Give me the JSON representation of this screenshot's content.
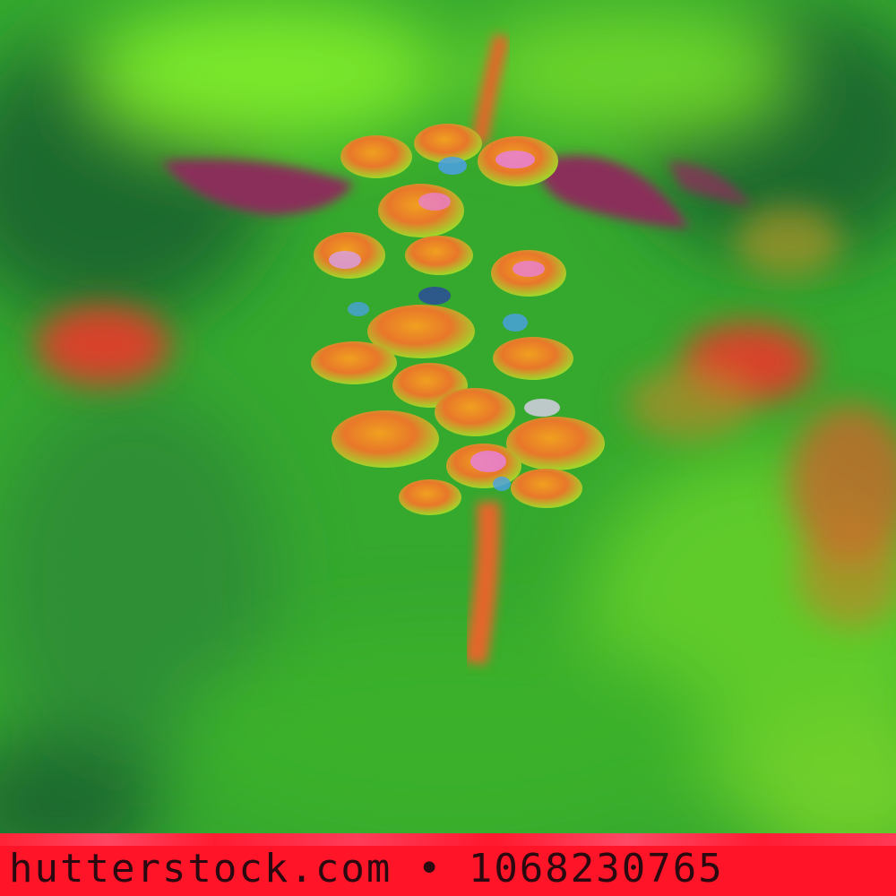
{
  "image": {
    "subject": "berries",
    "colors": {
      "foliage_dark": "#1f6b2e",
      "foliage_mid": "#3fbf2f",
      "foliage_bright": "#7be82a",
      "berry_orange": "#e8772a",
      "berry_red": "#d8432a",
      "leaf_purple": "#8a2e5a",
      "highlight_blue": "#4aa0e8",
      "highlight_pink": "#e880d8",
      "stem": "#e4662c"
    }
  },
  "watermark": {
    "text": "hutterstock.com • 1068230765",
    "bar_color": "#ff1428"
  }
}
